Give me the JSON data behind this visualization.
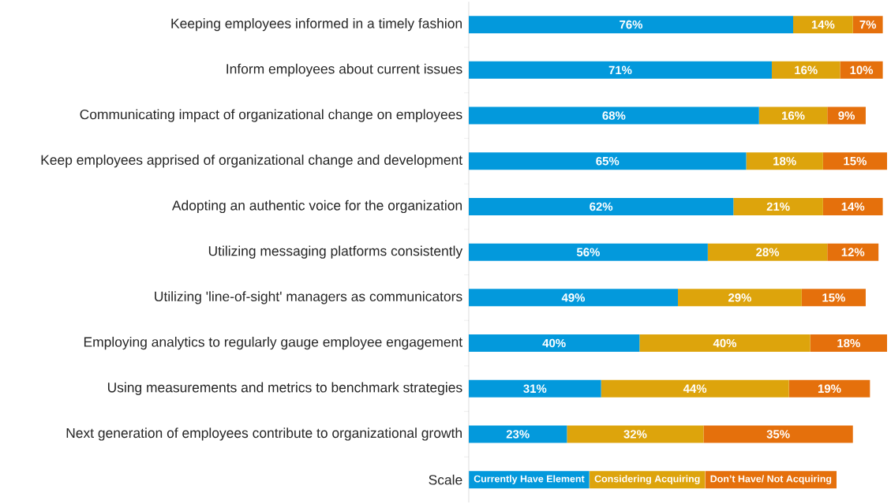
{
  "chart_data": {
    "type": "bar",
    "orientation": "horizontal",
    "stacked": true,
    "legend": "bottom",
    "legend_title": "Scale",
    "categories": [
      "Keeping employees informed in a timely fashion",
      "Inform employees about current issues",
      "Communicating impact of organizational change on employees",
      "Keep employees apprised of organizational change and development",
      "Adopting an authentic voice for the organization",
      "Utilizing messaging platforms consistently",
      "Utilizing 'line-of-sight' managers as communicators",
      "Employing analytics to regularly gauge employee engagement",
      "Using measurements and metrics to benchmark strategies",
      "Next generation of employees contribute to organizational growth"
    ],
    "series": [
      {
        "name": "Currently Have Element",
        "color": "#0399dc",
        "values": [
          76,
          71,
          68,
          65,
          62,
          56,
          49,
          40,
          31,
          23
        ],
        "value_labels": [
          "76%",
          "71%",
          "68%",
          "65%",
          "62%",
          "56%",
          "49%",
          "40%",
          "31%",
          "23%"
        ]
      },
      {
        "name": "Considering Acquiring",
        "color": "#dda40c",
        "values": [
          14,
          16,
          16,
          18,
          21,
          28,
          29,
          40,
          44,
          32
        ],
        "value_labels": [
          "14%",
          "16%",
          "16%",
          "18%",
          "21%",
          "28%",
          "29%",
          "40%",
          "44%",
          "32%"
        ]
      },
      {
        "name": "Don’t Have/ Not Acquiring",
        "color": "#e5700c",
        "values": [
          7,
          10,
          9,
          15,
          14,
          12,
          15,
          18,
          19,
          35
        ],
        "value_labels": [
          "7%",
          "10%",
          "9%",
          "15%",
          "14%",
          "12%",
          "15%",
          "18%",
          "19%",
          "35%"
        ]
      }
    ]
  }
}
